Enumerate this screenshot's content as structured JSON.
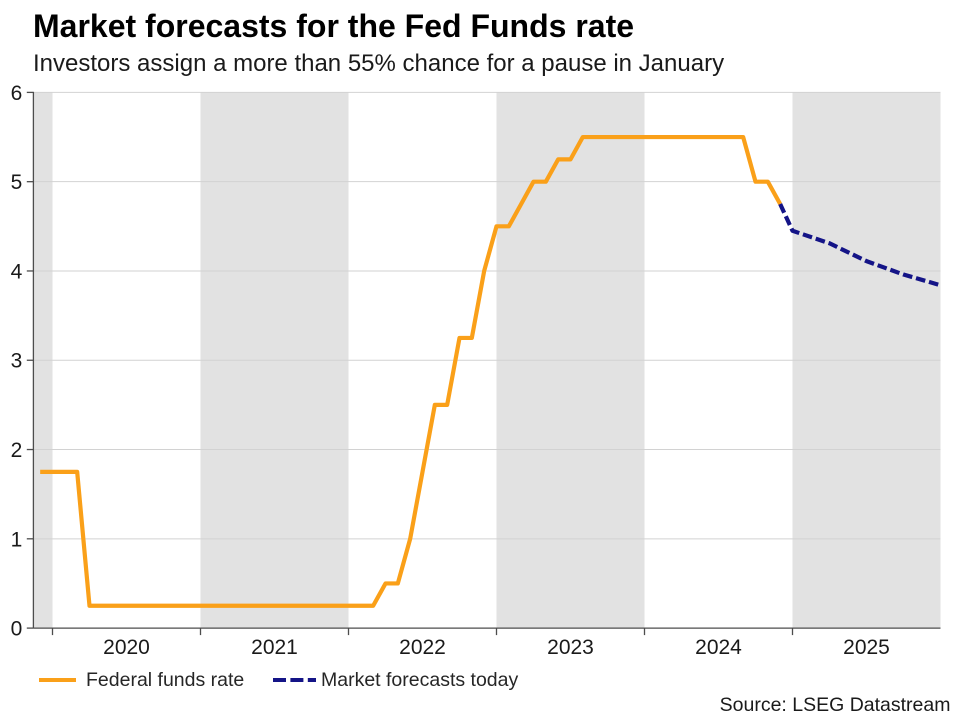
{
  "title": "Market forecasts for the Fed Funds rate",
  "subtitle": "Investors assign a more than 55% chance for a pause in January",
  "source_note": "Source: LSEG Datastream",
  "colors": {
    "federal_funds_line": "#faa019",
    "forecast_line": "#141487",
    "shaded_band": "#e2e2e2",
    "gridline": "#d2d2d2",
    "axis": "#4d4d4d",
    "text": "#1a1a1a"
  },
  "legend": {
    "items": [
      {
        "label": "Federal funds rate",
        "style": "solid",
        "color": "#faa019"
      },
      {
        "label": "Market forecasts today",
        "style": "dashed",
        "color": "#141487"
      }
    ]
  },
  "chart_data": {
    "type": "line",
    "title": "Market forecasts for the Fed Funds rate",
    "subtitle": "Investors assign a more than 55% chance for a pause in January",
    "xlabel": "",
    "ylabel": "",
    "x_range": [
      2019.871,
      2026.0
    ],
    "ylim": [
      0,
      6
    ],
    "y_ticks": [
      0,
      1,
      2,
      3,
      4,
      5,
      6
    ],
    "x_ticks": [
      2020,
      2021,
      2022,
      2023,
      2024,
      2025
    ],
    "x_tick_labels": [
      "2020",
      "2021",
      "2022",
      "2023",
      "2024",
      "2025"
    ],
    "grid": "horizontal",
    "legend_position": "bottom",
    "shaded_bands": [
      [
        2019.875,
        2020.0
      ],
      [
        2021.0,
        2022.0
      ],
      [
        2023.0,
        2024.0
      ],
      [
        2025.0,
        2026.0
      ]
    ],
    "series": [
      {
        "name": "Federal funds rate",
        "color": "#faa019",
        "line_style": "solid",
        "points": [
          [
            2019.9167,
            1.75
          ],
          [
            2020.1667,
            1.75
          ],
          [
            2020.25,
            0.25
          ],
          [
            2022.1667,
            0.25
          ],
          [
            2022.25,
            0.5
          ],
          [
            2022.3333,
            0.5
          ],
          [
            2022.4167,
            1.0
          ],
          [
            2022.5,
            1.75
          ],
          [
            2022.5833,
            2.5
          ],
          [
            2022.6667,
            2.5
          ],
          [
            2022.75,
            3.25
          ],
          [
            2022.8333,
            3.25
          ],
          [
            2022.9167,
            4.0
          ],
          [
            2023.0,
            4.5
          ],
          [
            2023.0833,
            4.5
          ],
          [
            2023.1667,
            4.75
          ],
          [
            2023.25,
            5.0
          ],
          [
            2023.3333,
            5.0
          ],
          [
            2023.4167,
            5.25
          ],
          [
            2023.5,
            5.25
          ],
          [
            2023.5833,
            5.5
          ],
          [
            2024.6667,
            5.5
          ],
          [
            2024.75,
            5.0
          ],
          [
            2024.8333,
            5.0
          ],
          [
            2024.9167,
            4.75
          ]
        ]
      },
      {
        "name": "Market forecasts today",
        "color": "#141487",
        "line_style": "dashed",
        "points": [
          [
            2024.9167,
            4.75
          ],
          [
            2025.0,
            4.45
          ],
          [
            2025.25,
            4.31
          ],
          [
            2025.5,
            4.11
          ],
          [
            2025.75,
            3.96
          ],
          [
            2026.0,
            3.84
          ]
        ]
      }
    ]
  }
}
